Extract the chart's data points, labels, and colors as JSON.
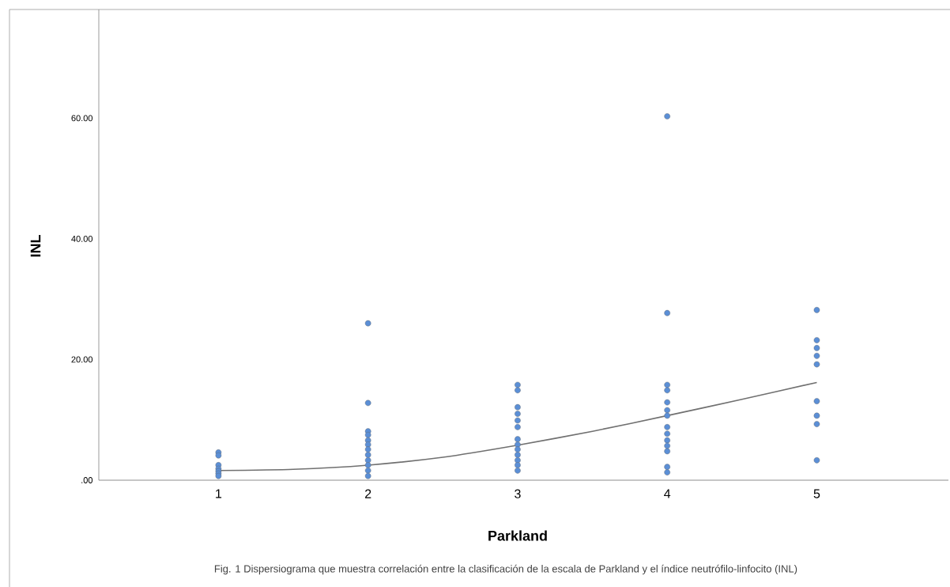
{
  "chart_data": {
    "type": "scatter",
    "xlabel": "Parkland",
    "ylabel": "INL",
    "annotations": [
      "Fig. 1 Dispersiograma que muestra correlación entre la clasificación de la escala de Parkland y el índice neutrófilo-linfocito (INL)"
    ],
    "xlim": [
      0.2,
      5.88
    ],
    "ylim": [
      0,
      78
    ],
    "xticks": [
      1,
      2,
      3,
      4,
      5
    ],
    "yticks": [
      {
        "value": 0,
        "label": ".00"
      },
      {
        "value": 20,
        "label": "20.00"
      },
      {
        "value": 40,
        "label": "40.00"
      },
      {
        "value": 60,
        "label": "60.00"
      }
    ],
    "series": [
      {
        "marker": "circle",
        "color": "#5b8fd6",
        "x": [
          1,
          1,
          1,
          1,
          1,
          1,
          1,
          2,
          2,
          2,
          2,
          2,
          2,
          2,
          2,
          2,
          2,
          2,
          2,
          3,
          3,
          3,
          3,
          3,
          3,
          3,
          3,
          3,
          3,
          3,
          3,
          3,
          4,
          4,
          4,
          4,
          4,
          4,
          4,
          4,
          4,
          4,
          4,
          4,
          4,
          4,
          5,
          5,
          5,
          5,
          5,
          5,
          5,
          5,
          5
        ],
        "values": [
          4.6,
          4.1,
          2.5,
          1.9,
          1.5,
          1.1,
          0.7,
          26.0,
          12.8,
          8.1,
          7.5,
          6.6,
          5.9,
          5.1,
          4.2,
          3.3,
          2.5,
          1.6,
          0.7,
          15.8,
          14.9,
          12.1,
          11.0,
          9.9,
          8.8,
          6.8,
          5.9,
          5.1,
          4.2,
          3.3,
          2.5,
          1.6,
          60.3,
          27.7,
          15.8,
          14.9,
          12.9,
          11.6,
          10.7,
          8.8,
          7.7,
          6.6,
          5.7,
          4.8,
          2.2,
          1.3,
          28.2,
          23.2,
          21.9,
          20.6,
          19.2,
          13.1,
          10.7,
          9.3,
          3.3
        ]
      },
      {
        "type": "line",
        "marker": "none",
        "color": "#707070",
        "x": [
          1,
          1.5,
          2,
          2.5,
          3,
          3.5,
          4,
          4.5,
          5
        ],
        "values": [
          1.6,
          1.8,
          2.5,
          3.8,
          5.8,
          8.1,
          10.7,
          13.4,
          16.2
        ]
      }
    ]
  }
}
